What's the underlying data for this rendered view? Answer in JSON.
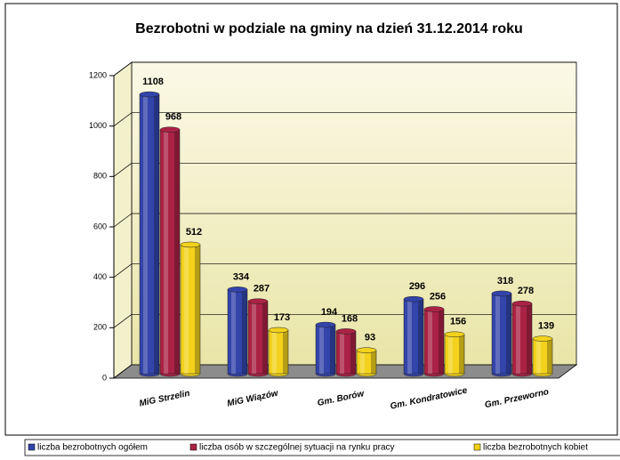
{
  "chart_data": {
    "type": "bar3d",
    "title": "Bezrobotni w podziale na gminy na dzień 31.12.2014 roku",
    "categories": [
      "MiG Strzelin",
      "MiG Wiązów",
      "Gm. Borów",
      "Gm. Kondratowice",
      "Gm. Przeworno"
    ],
    "series": [
      {
        "name": "liczba bezrobotnych ogółem",
        "color": "#3344aa",
        "values": [
          1108,
          334,
          194,
          296,
          318
        ]
      },
      {
        "name": "liczba osób w szczególnej sytuacji na rynku pracy",
        "color": "#aa2244",
        "values": [
          968,
          287,
          168,
          256,
          278
        ]
      },
      {
        "name": "liczba bezrobotnych kobiet",
        "color": "#f2d21c",
        "values": [
          512,
          173,
          93,
          156,
          139
        ]
      }
    ],
    "ylim": [
      0,
      1200
    ],
    "yticks": [
      0,
      200,
      400,
      600,
      800,
      1000,
      1200
    ],
    "grid": true,
    "legend": "bottom"
  }
}
